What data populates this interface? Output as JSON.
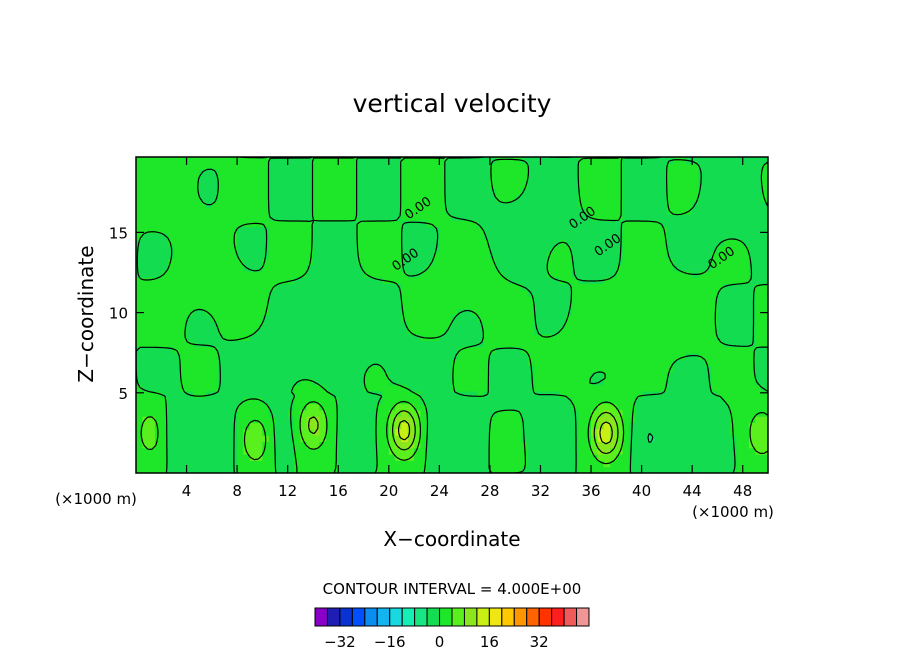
{
  "chart_data": {
    "type": "heatmap",
    "title": "vertical velocity",
    "xlabel": "X−coordinate",
    "ylabel": "Z−coordinate",
    "x_unit_left": "(×1000 m)",
    "x_unit_right": "(×1000 m)",
    "xlim": [
      0,
      50
    ],
    "ylim": [
      0,
      19.7
    ],
    "x_ticks": [
      4,
      8,
      12,
      16,
      20,
      24,
      28,
      32,
      36,
      40,
      44,
      48
    ],
    "y_ticks": [
      5,
      10,
      15
    ],
    "contour_interval_text": "CONTOUR INTERVAL = 4.000E+00",
    "contour_label": "0.00",
    "contour_label_positions": [
      [
        21.5,
        13.1
      ],
      [
        22.5,
        16.3
      ],
      [
        35.5,
        15.7
      ],
      [
        37.5,
        14.0
      ],
      [
        46.5,
        13.2
      ]
    ],
    "colorbar": {
      "colors": [
        "#8a00c8",
        "#1e1eb4",
        "#0a32d2",
        "#0050ff",
        "#0a8cf0",
        "#14b4f0",
        "#18d8e0",
        "#14f0b4",
        "#18e682",
        "#14dc50",
        "#1ee628",
        "#5af01e",
        "#8ce61e",
        "#c8f014",
        "#f0e614",
        "#ffc800",
        "#ff9600",
        "#ff6400",
        "#ff3200",
        "#ff1e1e",
        "#f05a5a",
        "#f09696"
      ],
      "tick_labels": [
        "−32",
        "−16",
        "0",
        "16",
        "32"
      ],
      "tick_values": [
        -32,
        -16,
        0,
        16,
        32
      ],
      "value_range": [
        -40,
        48
      ]
    },
    "field_features": [
      {
        "x": 1.2,
        "z": 2.5,
        "value": 6
      },
      {
        "x": 3.0,
        "z": 2.5,
        "value": -3
      },
      {
        "x": 6.5,
        "z": 2.1,
        "value": -3
      },
      {
        "x": 9.5,
        "z": 2.1,
        "value": 7
      },
      {
        "x": 11.5,
        "z": 2.2,
        "value": -2
      },
      {
        "x": 14.0,
        "z": 3.0,
        "value": 9
      },
      {
        "x": 17.2,
        "z": 2.6,
        "value": -3
      },
      {
        "x": 21.2,
        "z": 2.7,
        "value": 14
      },
      {
        "x": 24.0,
        "z": 2.2,
        "value": -3
      },
      {
        "x": 33.0,
        "z": 2.5,
        "value": -3
      },
      {
        "x": 37.2,
        "z": 2.5,
        "value": 14
      },
      {
        "x": 40.7,
        "z": 2.2,
        "value": -4
      },
      {
        "x": 45.0,
        "z": 2.0,
        "value": -3
      },
      {
        "x": 49.5,
        "z": 2.5,
        "value": 7
      },
      {
        "x": 16.0,
        "z": 9.5,
        "value": -1.5
      },
      {
        "x": 26.0,
        "z": 12.0,
        "value": 1.5
      },
      {
        "x": 31.0,
        "z": 15.0,
        "value": -1.5
      },
      {
        "x": 6.0,
        "z": 12.0,
        "value": 1.5
      },
      {
        "x": 42.0,
        "z": 10.0,
        "value": 1.5
      },
      {
        "x": 11.0,
        "z": 6.5,
        "value": -1.5
      },
      {
        "x": 47.0,
        "z": 16.5,
        "value": -1.2
      },
      {
        "x": 3.0,
        "z": 17.5,
        "value": 1.2
      },
      {
        "x": 36.0,
        "z": 8.0,
        "value": 1.2
      },
      {
        "x": 22.0,
        "z": 6.0,
        "value": -1.2
      }
    ]
  }
}
